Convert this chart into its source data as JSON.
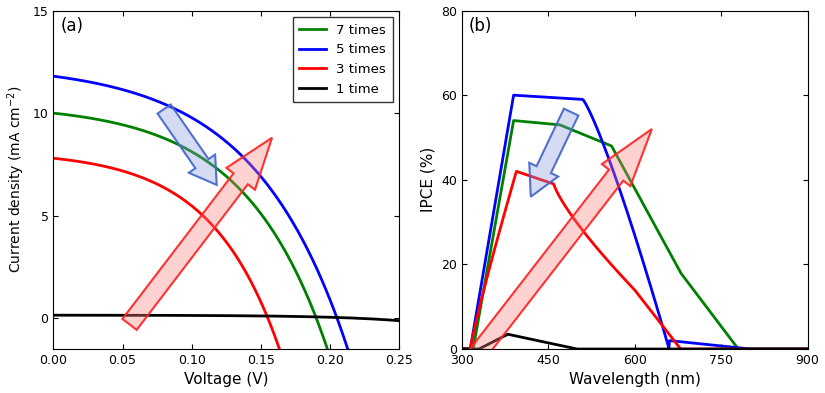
{
  "panel_a": {
    "xlabel": "Voltage (V)",
    "ylabel": "Current density (mA cm$^{-2}$)",
    "xlim": [
      0.0,
      0.25
    ],
    "ylim": [
      -1.5,
      15
    ],
    "yticks": [
      0,
      5,
      10,
      15
    ],
    "xticks": [
      0.0,
      0.05,
      0.1,
      0.15,
      0.2,
      0.25
    ]
  },
  "panel_b": {
    "xlabel": "Wavelength (nm)",
    "ylabel": "IPCE (%)",
    "xlim": [
      300,
      900
    ],
    "ylim": [
      0,
      80
    ],
    "yticks": [
      0,
      20,
      40,
      60,
      80
    ],
    "xticks": [
      300,
      450,
      600,
      750,
      900
    ]
  },
  "legend_labels": [
    "7 times",
    "5 times",
    "3 times",
    "1 time"
  ],
  "legend_colors": [
    "#008000",
    "#0000ff",
    "#ff0000",
    "#000000"
  ],
  "line_width": 2.0,
  "arrow_red_color": "#ff8080",
  "arrow_blue_color": "#8899dd",
  "arrow_edge_red": "#ff2222",
  "arrow_edge_blue": "#4466cc"
}
